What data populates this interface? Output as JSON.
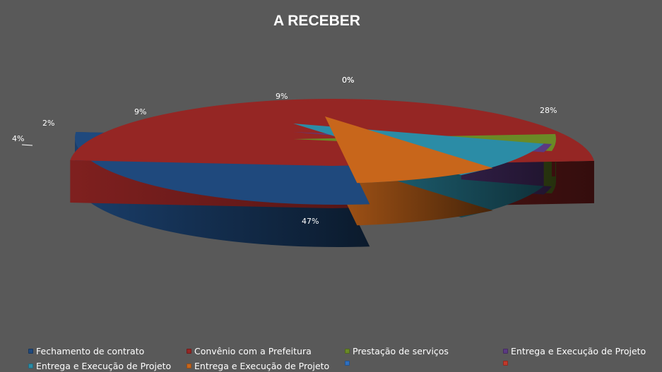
{
  "chart_data": {
    "type": "pie",
    "title": "A RECEBER",
    "three_d": true,
    "exploded": true,
    "start_angle_deg": 83,
    "slices": [
      {
        "legend": "Fechamento de contrato",
        "label": "28%",
        "value": 28,
        "color": "#1F497D"
      },
      {
        "legend": "Convênio com a Prefeitura",
        "label": "47%",
        "value": 47,
        "color": "#952624"
      },
      {
        "legend": "Prestação de serviços",
        "label": "4%",
        "value": 4,
        "color": "#6A8A26"
      },
      {
        "legend": "Entrega e Execução de Projeto",
        "label": "2%",
        "value": 2,
        "color": "#5B3A82"
      },
      {
        "legend": "Entrega e Execução de Projeto",
        "label": "9%",
        "value": 9,
        "color": "#2B8CA6"
      },
      {
        "legend": "Entrega e Execução de Projeto",
        "label": "9%",
        "value": 9,
        "color": "#C8661B"
      },
      {
        "legend": "",
        "label": "0%",
        "value": 0,
        "color": "#2E6FBF"
      },
      {
        "legend": "",
        "label": "0%",
        "value": 0,
        "color": "#C0392B"
      }
    ],
    "legend_position": "bottom"
  }
}
